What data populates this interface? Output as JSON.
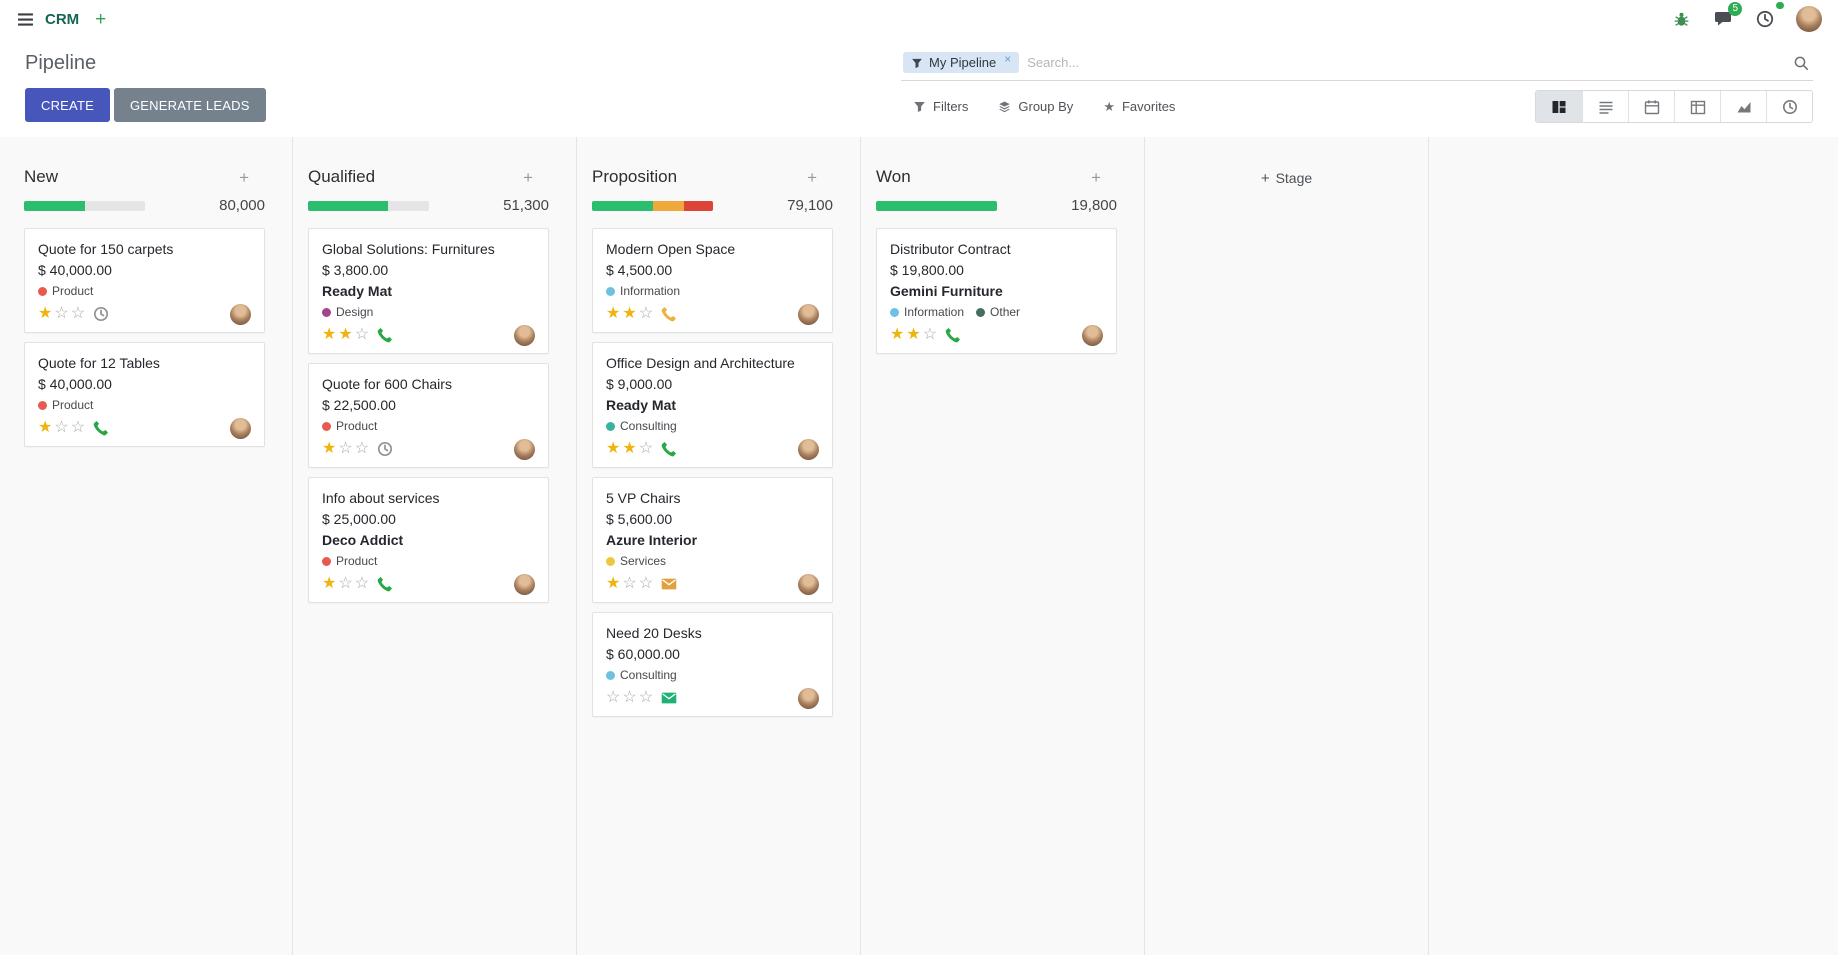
{
  "icons": {
    "plus": "+",
    "star": "★",
    "star_empty": "☆",
    "close": "×"
  },
  "topbar": {
    "app_name": "CRM",
    "messages_badge": "5",
    "activities_badge": ""
  },
  "control_panel": {
    "title": "Pipeline",
    "create_label": "CREATE",
    "generate_leads_label": "GENERATE LEADS",
    "search": {
      "facet": "My Pipeline",
      "placeholder": "Search..."
    },
    "filters_label": "Filters",
    "group_by_label": "Group By",
    "favorites_label": "Favorites"
  },
  "kanban": {
    "add_stage_label": "Stage",
    "columns": [
      {
        "name": "New",
        "total": "80,000",
        "progress": [
          {
            "status": "success",
            "color": "#2dbd6e",
            "pct": 50
          }
        ],
        "cards": [
          {
            "title": "Quote for 150 carpets",
            "amount": "$ 40,000.00",
            "partner": "",
            "tags": [
              {
                "label": "Product",
                "color": "#e8594f"
              }
            ],
            "stars": 1,
            "activity": {
              "type": "clock",
              "color": "#909296"
            }
          },
          {
            "title": "Quote for 12 Tables",
            "amount": "$ 40,000.00",
            "partner": "",
            "tags": [
              {
                "label": "Product",
                "color": "#e8594f"
              }
            ],
            "stars": 1,
            "activity": {
              "type": "phone",
              "color": "#28a745"
            }
          }
        ]
      },
      {
        "name": "Qualified",
        "total": "51,300",
        "progress": [
          {
            "status": "success",
            "color": "#2dbd6e",
            "pct": 66
          }
        ],
        "cards": [
          {
            "title": "Global Solutions: Furnitures",
            "amount": "$ 3,800.00",
            "partner": "Ready Mat",
            "tags": [
              {
                "label": "Design",
                "color": "#a24689"
              }
            ],
            "stars": 2,
            "activity": {
              "type": "phone",
              "color": "#28a745"
            }
          },
          {
            "title": "Quote for 600 Chairs",
            "amount": "$ 22,500.00",
            "partner": "",
            "tags": [
              {
                "label": "Product",
                "color": "#e8594f"
              }
            ],
            "stars": 1,
            "activity": {
              "type": "clock",
              "color": "#909296"
            }
          },
          {
            "title": "Info about services",
            "amount": "$ 25,000.00",
            "partner": "Deco Addict",
            "tags": [
              {
                "label": "Product",
                "color": "#e8594f"
              }
            ],
            "stars": 1,
            "activity": {
              "type": "phone",
              "color": "#28a745"
            }
          }
        ]
      },
      {
        "name": "Proposition",
        "total": "79,100",
        "progress": [
          {
            "status": "success",
            "color": "#2dbd6e",
            "pct": 50
          },
          {
            "status": "warning",
            "color": "#efa83c",
            "pct": 26
          },
          {
            "status": "danger",
            "color": "#dc4438",
            "pct": 24
          }
        ],
        "cards": [
          {
            "title": "Modern Open Space",
            "amount": "$ 4,500.00",
            "partner": "",
            "tags": [
              {
                "label": "Information",
                "color": "#6fc0e2"
              }
            ],
            "stars": 2,
            "activity": {
              "type": "phone",
              "color": "#efb041"
            }
          },
          {
            "title": "Office Design and Architecture",
            "amount": "$ 9,000.00",
            "partner": "Ready Mat",
            "tags": [
              {
                "label": "Consulting",
                "color": "#38b2a3"
              }
            ],
            "stars": 2,
            "activity": {
              "type": "phone",
              "color": "#28a745"
            }
          },
          {
            "title": "5 VP Chairs",
            "amount": "$ 5,600.00",
            "partner": "Azure Interior",
            "tags": [
              {
                "label": "Services",
                "color": "#efc73e"
              }
            ],
            "stars": 1,
            "activity": {
              "type": "envelope",
              "color": "#e0a23e"
            }
          },
          {
            "title": "Need 20 Desks",
            "amount": "$ 60,000.00",
            "partner": "",
            "tags": [
              {
                "label": "Consulting",
                "color": "#6fc0e2"
              }
            ],
            "stars": 0,
            "activity": {
              "type": "envelope",
              "color": "#20b274"
            }
          }
        ]
      },
      {
        "name": "Won",
        "total": "19,800",
        "progress": [
          {
            "status": "success",
            "color": "#2dbd6e",
            "pct": 100
          }
        ],
        "cards": [
          {
            "title": "Distributor Contract",
            "amount": "$ 19,800.00",
            "partner": "Gemini Furniture",
            "tags": [
              {
                "label": "Information",
                "color": "#6fc0e2"
              },
              {
                "label": "Other",
                "color": "#486d5f"
              }
            ],
            "stars": 2,
            "activity": {
              "type": "phone",
              "color": "#28a745"
            }
          }
        ]
      }
    ]
  }
}
